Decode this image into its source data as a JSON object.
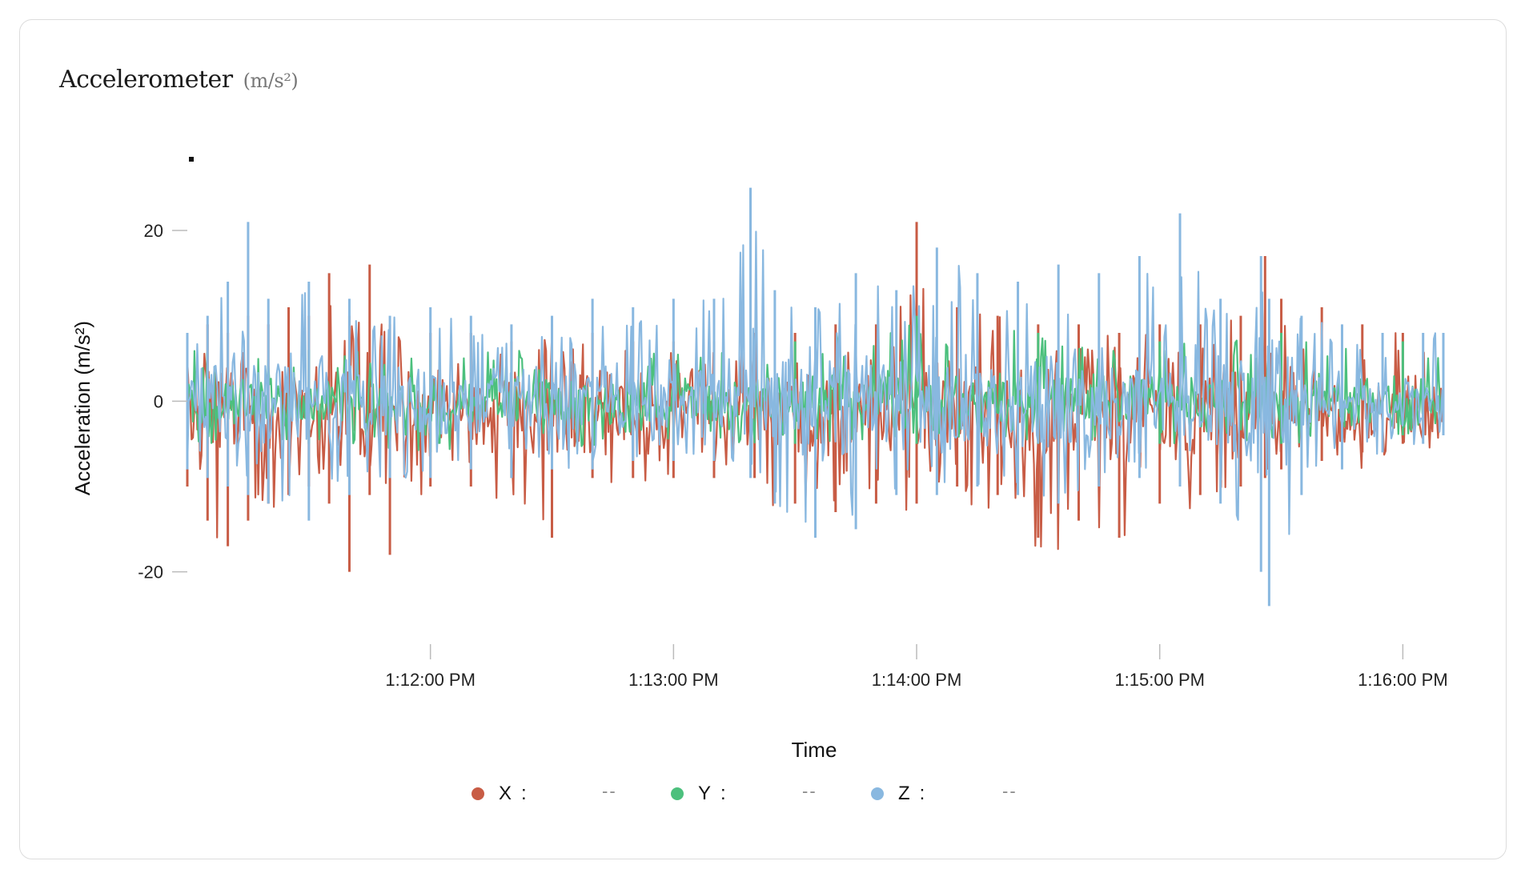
{
  "card": {
    "title": "Accelerometer",
    "title_unit": "(m/s²)"
  },
  "chart_data": {
    "type": "line",
    "title": "Accelerometer (m/s²)",
    "xlabel": "Time",
    "ylabel": "Acceleration (m/s²)",
    "x_axis_type": "time",
    "x_start": "1:11:00 PM",
    "x_end": "1:16:10 PM",
    "x_tick_labels": [
      "1:12:00 PM",
      "1:13:00 PM",
      "1:14:00 PM",
      "1:15:00 PM",
      "1:16:00 PM"
    ],
    "y_tick_labels": [
      "20",
      "0",
      "-20"
    ],
    "y_ticks": [
      20,
      0,
      -20
    ],
    "ylim": [
      -28,
      32
    ],
    "grid": false,
    "legend_placement": "bottom-center",
    "series": [
      {
        "name": "X",
        "color": "#c85c45",
        "readout": "--",
        "x": [
          "1:11:00 PM",
          "1:11:05 PM",
          "1:11:10 PM",
          "1:11:15 PM",
          "1:11:20 PM",
          "1:11:25 PM",
          "1:11:30 PM",
          "1:11:35 PM",
          "1:11:40 PM",
          "1:11:45 PM",
          "1:11:50 PM",
          "1:12:00 PM",
          "1:12:10 PM",
          "1:12:20 PM",
          "1:12:30 PM",
          "1:12:40 PM",
          "1:12:50 PM",
          "1:13:00 PM",
          "1:13:10 PM",
          "1:13:20 PM",
          "1:13:30 PM",
          "1:13:40 PM",
          "1:13:50 PM",
          "1:14:00 PM",
          "1:14:10 PM",
          "1:14:20 PM",
          "1:14:30 PM",
          "1:14:40 PM",
          "1:14:50 PM",
          "1:15:00 PM",
          "1:15:10 PM",
          "1:15:20 PM",
          "1:15:26 PM",
          "1:15:30 PM",
          "1:15:40 PM",
          "1:15:50 PM",
          "1:16:00 PM",
          "1:16:10 PM"
        ],
        "upper": [
          8,
          9,
          8,
          10,
          9,
          11,
          10,
          15,
          10,
          16,
          9,
          8,
          8,
          7,
          9,
          8,
          7,
          7,
          7,
          8,
          8,
          9,
          9,
          21,
          11,
          10,
          9,
          9,
          8,
          9,
          9,
          10,
          17,
          12,
          11,
          9,
          8,
          7
        ],
        "lower": [
          -10,
          -14,
          -17,
          -14,
          -12,
          -11,
          -10,
          -12,
          -20,
          -11,
          -18,
          -10,
          -10,
          -9,
          -16,
          -9,
          -9,
          -9,
          -9,
          -9,
          -12,
          -13,
          -12,
          -12,
          -10,
          -11,
          -16,
          -14,
          -16,
          -12,
          -11,
          -10,
          -9,
          -8,
          -7,
          -6,
          -5,
          -4
        ]
      },
      {
        "name": "Y",
        "color": "#4cc07d",
        "readout": "--",
        "x": [
          "1:11:00 PM",
          "1:11:30 PM",
          "1:12:00 PM",
          "1:12:30 PM",
          "1:13:00 PM",
          "1:13:30 PM",
          "1:14:00 PM",
          "1:14:30 PM",
          "1:15:00 PM",
          "1:15:30 PM",
          "1:16:00 PM",
          "1:16:10 PM"
        ],
        "upper": [
          6,
          6,
          6,
          6,
          6,
          7,
          10,
          8,
          7,
          8,
          7,
          6
        ],
        "lower": [
          -5,
          -5,
          -6,
          -6,
          -5,
          -5,
          -5,
          -5,
          -5,
          -5,
          -4,
          -4
        ]
      },
      {
        "name": "Z",
        "color": "#89b8e0",
        "readout": "--",
        "x": [
          "1:11:00 PM",
          "1:11:05 PM",
          "1:11:10 PM",
          "1:11:15 PM",
          "1:11:20 PM",
          "1:11:30 PM",
          "1:11:40 PM",
          "1:11:50 PM",
          "1:12:00 PM",
          "1:12:10 PM",
          "1:12:20 PM",
          "1:12:30 PM",
          "1:12:40 PM",
          "1:12:50 PM",
          "1:13:00 PM",
          "1:13:10 PM",
          "1:13:19 PM",
          "1:13:25 PM",
          "1:13:35 PM",
          "1:13:45 PM",
          "1:13:55 PM",
          "1:14:05 PM",
          "1:14:15 PM",
          "1:14:25 PM",
          "1:14:35 PM",
          "1:14:45 PM",
          "1:14:55 PM",
          "1:15:05 PM",
          "1:15:15 PM",
          "1:15:25 PM",
          "1:15:27 PM",
          "1:15:35 PM",
          "1:15:45 PM",
          "1:15:55 PM",
          "1:16:05 PM",
          "1:16:10 PM"
        ],
        "upper": [
          8,
          10,
          14,
          21,
          12,
          14,
          12,
          10,
          11,
          10,
          9,
          10,
          12,
          11,
          12,
          12,
          25,
          13,
          11,
          15,
          13,
          18,
          15,
          14,
          16,
          15,
          17,
          22,
          12,
          17,
          12,
          10,
          9,
          8,
          8,
          8
        ],
        "lower": [
          -8,
          -9,
          -10,
          -11,
          -12,
          -14,
          -11,
          -9,
          -9,
          -8,
          -9,
          -8,
          -8,
          -7,
          -7,
          -7,
          -9,
          -12,
          -16,
          -15,
          -11,
          -11,
          -10,
          -11,
          -12,
          -10,
          -9,
          -10,
          -12,
          -20,
          -24,
          -11,
          -8,
          -6,
          -5,
          -4
        ]
      }
    ]
  }
}
